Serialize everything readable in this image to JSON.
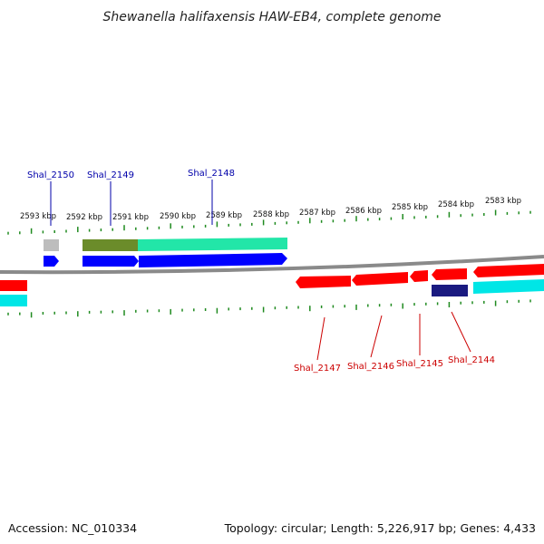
{
  "title": "Shewanella halifaxensis HAW-EB4, complete genome",
  "footer": {
    "accession": "Accession: NC_010334",
    "summary": "Topology: circular; Length: 5,226,917 bp; Genes: 4,433"
  },
  "colors": {
    "forward_cds": "#0000ff",
    "reverse_cds": "#ff0000",
    "backbone": "#888888",
    "tick": "#1f8a1f",
    "upper_label": "#0000aa",
    "lower_label": "#cc0000",
    "cog_green": "#22e6a8",
    "cog_olive": "#6b8c2a",
    "cog_cyan": "#00e6e6",
    "cog_grey": "#bdbdbd",
    "cog_navy": "#1a1a80"
  },
  "ruler": {
    "labels": [
      "2593 kbp",
      "2592 kbp",
      "2591 kbp",
      "2590 kbp",
      "2589 kbp",
      "2588 kbp",
      "2587 kbp",
      "2586 kbp",
      "2585 kbp",
      "2584 kbp",
      "2583 kbp"
    ]
  },
  "genes_upper": [
    {
      "label": "Shal_2150"
    },
    {
      "label": "Shal_2149"
    },
    {
      "label": "Shal_2148"
    }
  ],
  "genes_lower": [
    {
      "label": "Shal_2147"
    },
    {
      "label": "Shal_2146"
    },
    {
      "label": "Shal_2145"
    },
    {
      "label": "Shal_2144"
    }
  ]
}
